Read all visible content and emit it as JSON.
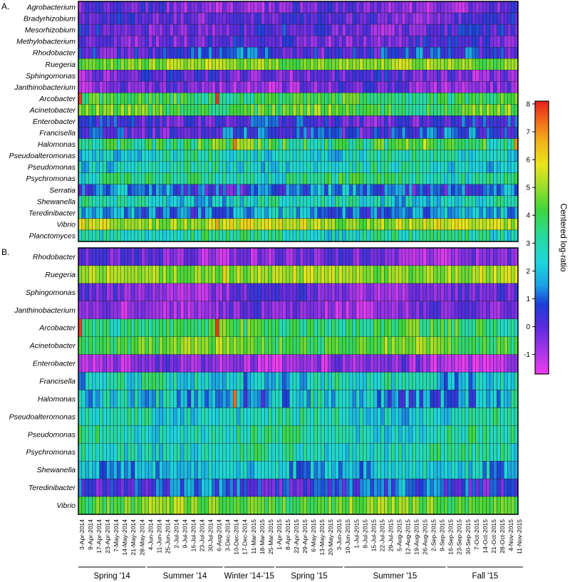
{
  "chart_data": {
    "type": "heatmap",
    "colorbar": {
      "title": "Centered log-ratio",
      "min": -1.7,
      "max": 8.1,
      "ticks": [
        -1,
        0,
        1,
        2,
        3,
        4,
        5,
        6,
        7,
        8
      ],
      "tick_labels": [
        "-1",
        "0",
        "1",
        "2",
        "3",
        "4",
        "5",
        "6",
        "7",
        "8"
      ],
      "stops": [
        {
          "v": -1.7,
          "color": "#ee3cf0"
        },
        {
          "v": -0.6,
          "color": "#8f33e6"
        },
        {
          "v": 0.0,
          "color": "#5a2bde"
        },
        {
          "v": 0.8,
          "color": "#1d3ed8"
        },
        {
          "v": 1.5,
          "color": "#1aa3e4"
        },
        {
          "v": 2.3,
          "color": "#1ed6dc"
        },
        {
          "v": 3.3,
          "color": "#29d89a"
        },
        {
          "v": 4.2,
          "color": "#3ed63a"
        },
        {
          "v": 5.0,
          "color": "#9add2a"
        },
        {
          "v": 5.8,
          "color": "#e9e61c"
        },
        {
          "v": 6.6,
          "color": "#f2b51a"
        },
        {
          "v": 7.4,
          "color": "#f06a1a"
        },
        {
          "v": 8.1,
          "color": "#e8201c"
        }
      ]
    },
    "date_labels": [
      "3-Apr-2014",
      "9-Apr-2014",
      "17-Apr-2014",
      "23-Apr-2014",
      "7-May-2014",
      "14-May-2014",
      "21-May-2014",
      "28-May-2014",
      "4-Jun-2014",
      "11-Jun-2014",
      "25-Jun-2014",
      "2-Jul-2014",
      "9-Jul-2014",
      "16-Jul-2014",
      "23-Jul-2014",
      "30-Jul-2014",
      "6-Aug-2014",
      "3-Dec-2014",
      "10-Dec-2014",
      "17-Dec-2014",
      "11-Mar-2015",
      "18-Mar-2015",
      "25-Mar-2015",
      "1-Apr-2015",
      "8-Apr-2015",
      "22-Apr-2015",
      "29-Apr-2015",
      "6-May-2015",
      "13-May-2015",
      "20-May-2015",
      "3-Jun-2015",
      "10-Jun-2015",
      "1-Jul-2015",
      "8-Jul-2015",
      "15-Jul-2015",
      "22-Jul-2015",
      "29-Jul-2015",
      "5-Aug-2015",
      "12-Aug-2015",
      "19-Aug-2015",
      "26-Aug-2015",
      "2-Sep-2015",
      "9-Sep-2015",
      "16-Sep-2015",
      "23-Sep-2015",
      "30-Sep-2015",
      "7-Oct-2015",
      "14-Oct-2015",
      "21-Oct-2015",
      "28-Oct-2015",
      "4-Nov-2015",
      "11-Nov-2015"
    ],
    "seasons": [
      {
        "label": "Spring '14",
        "from_date": "3-Apr-2014",
        "to_date": "28-May-2014"
      },
      {
        "label": "Summer '14",
        "from_date": "4-Jun-2014",
        "to_date": "6-Aug-2014"
      },
      {
        "label": "Winter '14-'15",
        "from_date": "3-Dec-2014",
        "to_date": "25-Mar-2015"
      },
      {
        "label": "Spring '15",
        "from_date": "1-Apr-2015",
        "to_date": "3-Jun-2015"
      },
      {
        "label": "Summer '15",
        "from_date": "10-Jun-2015",
        "to_date": "9-Sep-2015"
      },
      {
        "label": "Fall '15",
        "from_date": "16-Sep-2015",
        "to_date": "11-Nov-2015"
      }
    ],
    "columns_per_panel": 125,
    "panels": [
      {
        "label": "A.",
        "rows": [
          {
            "genus": "Agrobacterium",
            "mean": -0.4,
            "spread": 0.8
          },
          {
            "genus": "Bradyrhizobium",
            "mean": -0.1,
            "spread": 0.7
          },
          {
            "genus": "Mesorhizobium",
            "mean": -0.1,
            "spread": 0.8
          },
          {
            "genus": "Methylobacterium",
            "mean": -0.1,
            "spread": 0.8
          },
          {
            "genus": "Rhodobacter",
            "mean": 0.5,
            "spread": 1.0
          },
          {
            "genus": "Ruegeria",
            "mean": 4.8,
            "spread": 0.7
          },
          {
            "genus": "Sphingomonas",
            "mean": -0.2,
            "spread": 0.8
          },
          {
            "genus": "Janthinobacterium",
            "mean": -0.5,
            "spread": 0.8
          },
          {
            "genus": "Arcobacter",
            "mean": 3.9,
            "spread": 0.9
          },
          {
            "genus": "Acinetobacter",
            "mean": 4.2,
            "spread": 0.9
          },
          {
            "genus": "Enterobacter",
            "mean": 0.2,
            "spread": 0.9
          },
          {
            "genus": "Francisella",
            "mean": 0.6,
            "spread": 1.0
          },
          {
            "genus": "Halomonas",
            "mean": 3.8,
            "spread": 1.3
          },
          {
            "genus": "Pseudoalteromonas",
            "mean": 2.6,
            "spread": 1.0
          },
          {
            "genus": "Pseudomonas",
            "mean": 2.6,
            "spread": 0.9
          },
          {
            "genus": "Psychromonas",
            "mean": 3.2,
            "spread": 1.0
          },
          {
            "genus": "Serratia",
            "mean": 1.0,
            "spread": 1.1
          },
          {
            "genus": "Shewanella",
            "mean": 2.6,
            "spread": 1.0
          },
          {
            "genus": "Teredinibacter",
            "mean": 1.6,
            "spread": 1.1
          },
          {
            "genus": "Vibrio",
            "mean": 5.3,
            "spread": 0.8
          },
          {
            "genus": "Planctomyces",
            "mean": 3.0,
            "spread": 1.0
          }
        ],
        "hotspots": [
          {
            "genus": "Arcobacter",
            "date": "3-Apr-2014",
            "value": 7.8
          },
          {
            "genus": "Arcobacter",
            "date": "6-Aug-2014",
            "value": 7.9
          },
          {
            "genus": "Halomonas",
            "date": "10-Dec-2014",
            "value": 7.3
          },
          {
            "genus": "Halomonas",
            "date": "11-Nov-2015",
            "value": 7.0
          },
          {
            "genus": "Vibrio",
            "date": "6-Aug-2014",
            "value": 6.8
          }
        ]
      },
      {
        "label": "B.",
        "rows": [
          {
            "genus": "Rhodobacter",
            "mean": -0.5,
            "spread": 0.8
          },
          {
            "genus": "Ruegeria",
            "mean": 5.0,
            "spread": 0.7
          },
          {
            "genus": "Sphingomonas",
            "mean": -0.4,
            "spread": 0.7
          },
          {
            "genus": "Janthinobacterium",
            "mean": -0.6,
            "spread": 0.7
          },
          {
            "genus": "Arcobacter",
            "mean": 3.7,
            "spread": 0.9
          },
          {
            "genus": "Acinetobacter",
            "mean": 4.4,
            "spread": 0.8
          },
          {
            "genus": "Enterobacter",
            "mean": -0.7,
            "spread": 0.9
          },
          {
            "genus": "Francisella",
            "mean": 2.4,
            "spread": 1.1
          },
          {
            "genus": "Halomonas",
            "mean": 1.8,
            "spread": 1.3
          },
          {
            "genus": "Pseudoalteromonas",
            "mean": 2.6,
            "spread": 0.9
          },
          {
            "genus": "Pseudomonas",
            "mean": 2.9,
            "spread": 0.9
          },
          {
            "genus": "Psychromonas",
            "mean": 2.9,
            "spread": 0.9
          },
          {
            "genus": "Shewanella",
            "mean": 2.0,
            "spread": 1.0
          },
          {
            "genus": "Teredinibacter",
            "mean": 0.7,
            "spread": 1.1
          },
          {
            "genus": "Vibrio",
            "mean": 4.5,
            "spread": 0.8
          }
        ],
        "hotspots": [
          {
            "genus": "Arcobacter",
            "date": "3-Apr-2014",
            "value": 7.8
          },
          {
            "genus": "Arcobacter",
            "date": "6-Aug-2014",
            "value": 7.9
          },
          {
            "genus": "Halomonas",
            "date": "10-Dec-2014",
            "value": 7.4
          },
          {
            "genus": "Ruegeria",
            "date": "3-Dec-2014",
            "value": 6.2
          }
        ]
      }
    ]
  }
}
